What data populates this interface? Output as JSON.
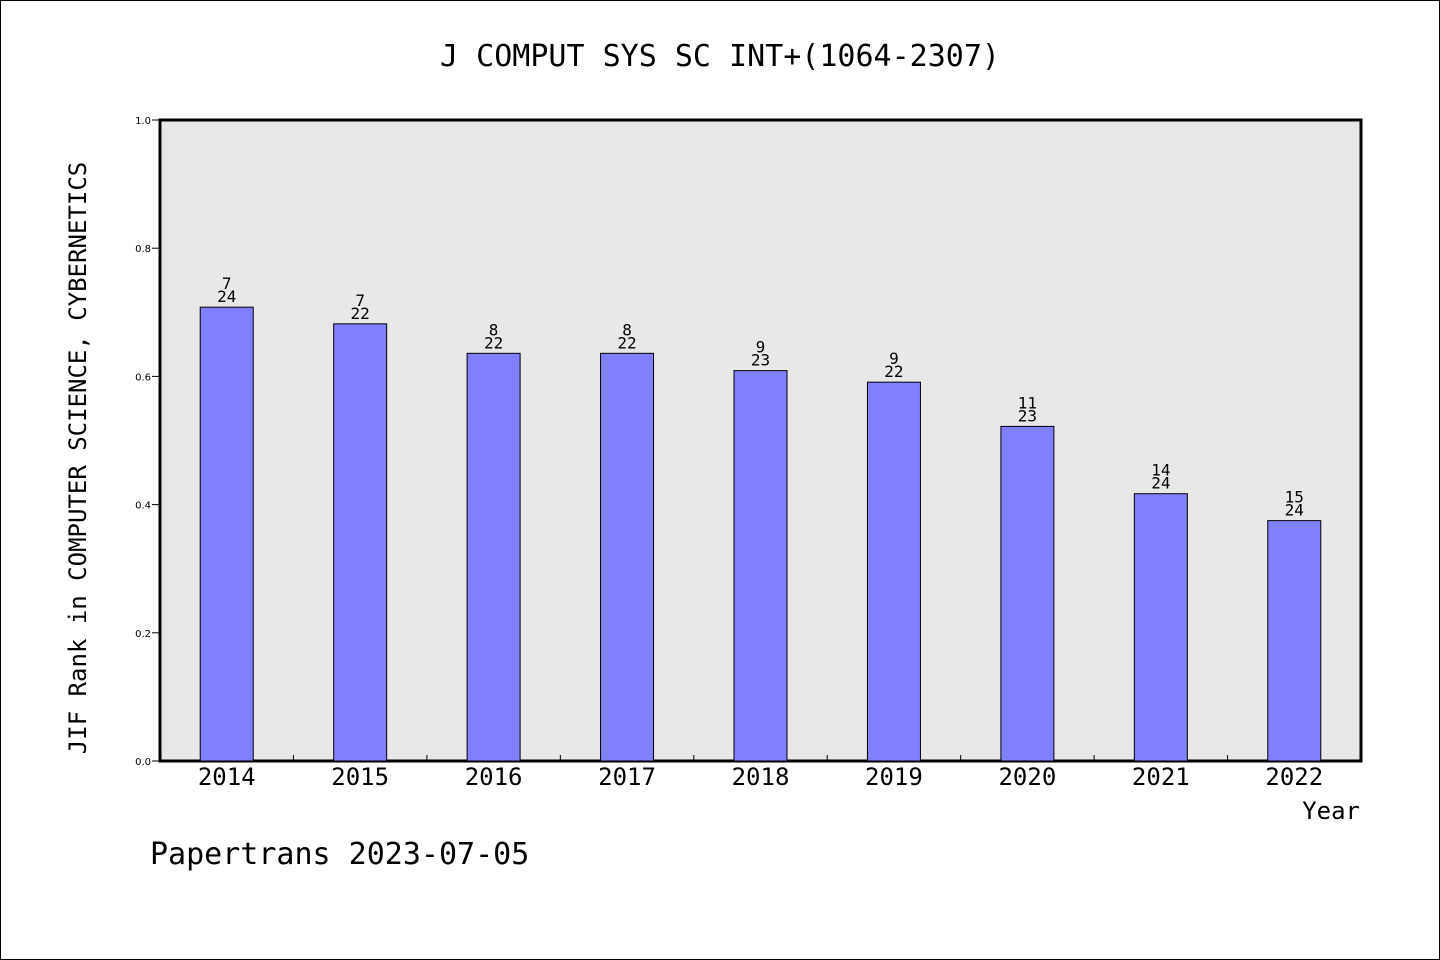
{
  "chart_data": {
    "type": "bar",
    "title": "J COMPUT SYS SC INT+(1064-2307)",
    "xlabel": "Year",
    "ylabel": "JIF Rank in COMPUTER SCIENCE, CYBERNETICS",
    "ylim": [
      0,
      1.0
    ],
    "yticks": [
      "0.0",
      "0.2",
      "0.4",
      "0.6",
      "0.8",
      "1.0"
    ],
    "grid": false,
    "categories": [
      "2014",
      "2015",
      "2016",
      "2017",
      "2018",
      "2019",
      "2020",
      "2021",
      "2022"
    ],
    "values": [
      0.708,
      0.682,
      0.636,
      0.636,
      0.609,
      0.591,
      0.522,
      0.417,
      0.375
    ],
    "rank": [
      "7",
      "7",
      "8",
      "8",
      "9",
      "9",
      "11",
      "14",
      "15"
    ],
    "total": [
      "24",
      "22",
      "22",
      "22",
      "23",
      "22",
      "23",
      "24",
      "24"
    ],
    "bar_color": "#8080ff",
    "plot_background": "#e8e8e8"
  },
  "footer": "Papertrans 2023-07-05"
}
